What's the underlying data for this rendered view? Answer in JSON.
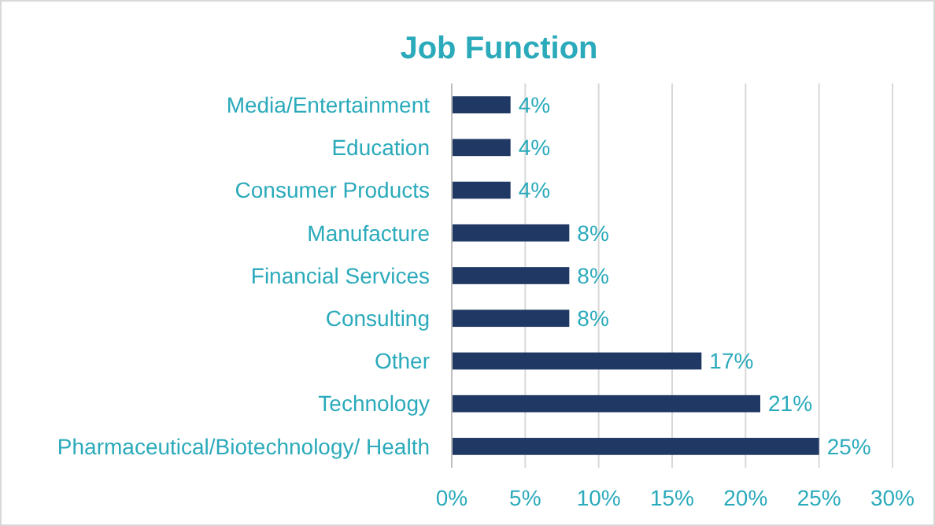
{
  "chart_data": {
    "type": "bar",
    "orientation": "horizontal",
    "title": "Job Function",
    "categories": [
      "Media/Entertainment",
      "Education",
      "Consumer Products",
      "Manufacture",
      "Financial Services",
      "Consulting",
      "Other",
      "Technology",
      "Pharmaceutical/Biotechnology/ Health"
    ],
    "values": [
      4,
      4,
      4,
      8,
      8,
      8,
      17,
      21,
      25
    ],
    "value_labels": [
      "4%",
      "4%",
      "4%",
      "8%",
      "8%",
      "8%",
      "17%",
      "21%",
      "25%"
    ],
    "color": "#1f3864",
    "xlim": [
      0,
      30
    ],
    "xticks": [
      {
        "value": 0,
        "label": "0%"
      },
      {
        "value": 5,
        "label": "5%"
      },
      {
        "value": 10,
        "label": "10%"
      },
      {
        "value": 15,
        "label": "15%"
      },
      {
        "value": 20,
        "label": "20%"
      },
      {
        "value": 25,
        "label": "25%"
      },
      {
        "value": 30,
        "label": "30%"
      }
    ],
    "grid": "x"
  }
}
